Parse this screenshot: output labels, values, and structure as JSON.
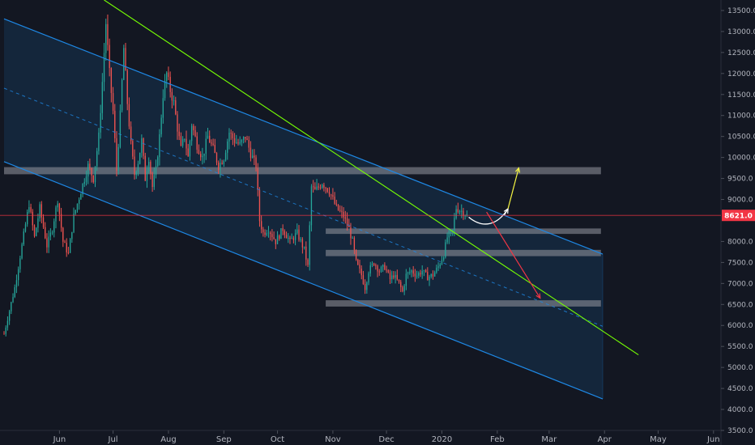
{
  "chart_data": {
    "type": "candlestick",
    "title": "",
    "xlabel": "",
    "ylabel": "",
    "ylim": [
      3500,
      13750
    ],
    "grid": false,
    "x_axis": {
      "ticks": [
        {
          "label": "Jun",
          "day": 31
        },
        {
          "label": "Jul",
          "day": 61
        },
        {
          "label": "Aug",
          "day": 92
        },
        {
          "label": "Sep",
          "day": 123
        },
        {
          "label": "Oct",
          "day": 153
        },
        {
          "label": "Nov",
          "day": 184
        },
        {
          "label": "Dec",
          "day": 214
        },
        {
          "label": "2020",
          "day": 245
        },
        {
          "label": "Feb",
          "day": 276
        },
        {
          "label": "Mar",
          "day": 305
        },
        {
          "label": "Apr",
          "day": 336
        },
        {
          "label": "May",
          "day": 366
        },
        {
          "label": "Jun",
          "day": 397
        }
      ]
    },
    "y_axis": {
      "ticks": [
        3500,
        4000,
        4500,
        5000,
        5500,
        6000,
        6500,
        7000,
        7500,
        8000,
        8500,
        9000,
        9500,
        10000,
        10500,
        11000,
        11500,
        12000,
        12500,
        13000,
        13500
      ]
    },
    "current_price": {
      "value": 8621.0,
      "label": "8621.0",
      "color": "#f23645"
    },
    "colors": {
      "background": "#131722",
      "up": "#26a69a",
      "down": "#ef5350",
      "channel": "#1e88e5",
      "trendline": "#76ff03",
      "zone": "#9598a1",
      "arrow_up": "#f5f542",
      "arrow_down": "#f23645",
      "curve": "#ffffff"
    },
    "candle_anchors": [
      [
        0,
        5800
      ],
      [
        6,
        6900
      ],
      [
        10,
        7900
      ],
      [
        14,
        8900
      ],
      [
        17,
        8100
      ],
      [
        20,
        8800
      ],
      [
        24,
        7900
      ],
      [
        27,
        8300
      ],
      [
        30,
        9000
      ],
      [
        33,
        8000
      ],
      [
        36,
        7700
      ],
      [
        39,
        8600
      ],
      [
        43,
        9200
      ],
      [
        47,
        9800
      ],
      [
        50,
        9500
      ],
      [
        53,
        10500
      ],
      [
        55,
        11800
      ],
      [
        57,
        13200
      ],
      [
        59,
        12000
      ],
      [
        61,
        11100
      ],
      [
        63,
        9700
      ],
      [
        65,
        11000
      ],
      [
        67,
        12600
      ],
      [
        69,
        11300
      ],
      [
        71,
        10300
      ],
      [
        73,
        9600
      ],
      [
        75,
        9900
      ],
      [
        77,
        10400
      ],
      [
        79,
        9500
      ],
      [
        81,
        10000
      ],
      [
        83,
        9300
      ],
      [
        85,
        9700
      ],
      [
        87,
        10500
      ],
      [
        89,
        11500
      ],
      [
        91,
        12000
      ],
      [
        93,
        11600
      ],
      [
        95,
        11300
      ],
      [
        97,
        10700
      ],
      [
        99,
        10200
      ],
      [
        101,
        10500
      ],
      [
        103,
        10000
      ],
      [
        105,
        10800
      ],
      [
        108,
        10300
      ],
      [
        111,
        10000
      ],
      [
        114,
        10500
      ],
      [
        117,
        10200
      ],
      [
        120,
        9800
      ],
      [
        123,
        10000
      ],
      [
        126,
        10600
      ],
      [
        129,
        10400
      ],
      [
        132,
        10300
      ],
      [
        135,
        10500
      ],
      [
        138,
        10100
      ],
      [
        141,
        9800
      ],
      [
        143,
        8500
      ],
      [
        145,
        8200
      ],
      [
        148,
        8300
      ],
      [
        152,
        8000
      ],
      [
        156,
        8300
      ],
      [
        160,
        8000
      ],
      [
        164,
        8200
      ],
      [
        168,
        7800
      ],
      [
        170,
        7400
      ],
      [
        172,
        9300
      ],
      [
        174,
        9200
      ],
      [
        178,
        9400
      ],
      [
        182,
        9200
      ],
      [
        186,
        8800
      ],
      [
        190,
        8600
      ],
      [
        193,
        8300
      ],
      [
        195,
        8000
      ],
      [
        197,
        7500
      ],
      [
        200,
        7200
      ],
      [
        202,
        6900
      ],
      [
        204,
        7300
      ],
      [
        207,
        7500
      ],
      [
        210,
        7300
      ],
      [
        213,
        7400
      ],
      [
        216,
        7100
      ],
      [
        218,
        7200
      ],
      [
        221,
        7000
      ],
      [
        223,
        6800
      ],
      [
        225,
        7200
      ],
      [
        228,
        7300
      ],
      [
        231,
        7200
      ],
      [
        234,
        7300
      ],
      [
        237,
        7150
      ],
      [
        240,
        7200
      ],
      [
        243,
        7400
      ],
      [
        246,
        7700
      ],
      [
        248,
        8100
      ],
      [
        251,
        8250
      ],
      [
        253,
        8800
      ],
      [
        255,
        8750
      ],
      [
        257,
        8700
      ],
      [
        259,
        8621
      ]
    ],
    "annotations": {
      "zones": [
        {
          "day_start": 0,
          "day_end": 334,
          "low": 9600,
          "high": 9770
        },
        {
          "day_start": 180,
          "day_end": 334,
          "low": 8180,
          "high": 8310
        },
        {
          "day_start": 180,
          "day_end": 334,
          "low": 7650,
          "high": 7800
        },
        {
          "day_start": 180,
          "day_end": 334,
          "low": 6450,
          "high": 6600
        }
      ],
      "channel": {
        "upper": [
          [
            0,
            13300
          ],
          [
            335,
            7700
          ]
        ],
        "lower": [
          [
            0,
            9900
          ],
          [
            335,
            4250
          ]
        ],
        "mid": [
          [
            0,
            11650
          ],
          [
            335,
            5980
          ]
        ]
      },
      "trendline": [
        [
          56,
          13750
        ],
        [
          355,
          5300
        ]
      ],
      "curve": [
        [
          260,
          8580
        ],
        [
          268,
          8300
        ],
        [
          276,
          8380
        ],
        [
          282,
          8780
        ]
      ],
      "arrow_up": [
        [
          282,
          8780
        ],
        [
          288,
          9750
        ]
      ],
      "arrow_down": [
        [
          270,
          8700
        ],
        [
          300,
          6650
        ]
      ]
    }
  }
}
